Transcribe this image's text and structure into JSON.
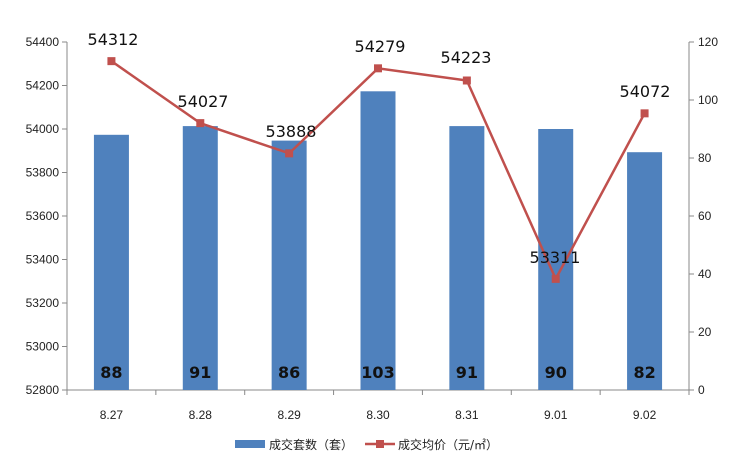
{
  "chart_data": {
    "type": "bar",
    "categories": [
      "8.27",
      "8.28",
      "8.29",
      "8.30",
      "8.31",
      "9.01",
      "9.02"
    ],
    "series": [
      {
        "name": "成交套数（套）",
        "kind": "bar",
        "axis": "right",
        "values": [
          88,
          91,
          86,
          103,
          91,
          90,
          82
        ],
        "color": "#4f81bd"
      },
      {
        "name": "成交均价（元/㎡）",
        "kind": "line",
        "axis": "left",
        "values": [
          54312,
          54027,
          53888,
          54279,
          54223,
          53311,
          54072
        ],
        "color": "#c0504d"
      }
    ],
    "y_left": {
      "min": 52800,
      "max": 54400,
      "ticks": [
        "52800",
        "53000",
        "53200",
        "53400",
        "53600",
        "53800",
        "54000",
        "54200",
        "54400"
      ]
    },
    "y_right": {
      "min": 0,
      "max": 120,
      "ticks": [
        "0",
        "20",
        "40",
        "60",
        "80",
        "100",
        "120"
      ]
    },
    "grid": false,
    "legend": "bottom"
  }
}
